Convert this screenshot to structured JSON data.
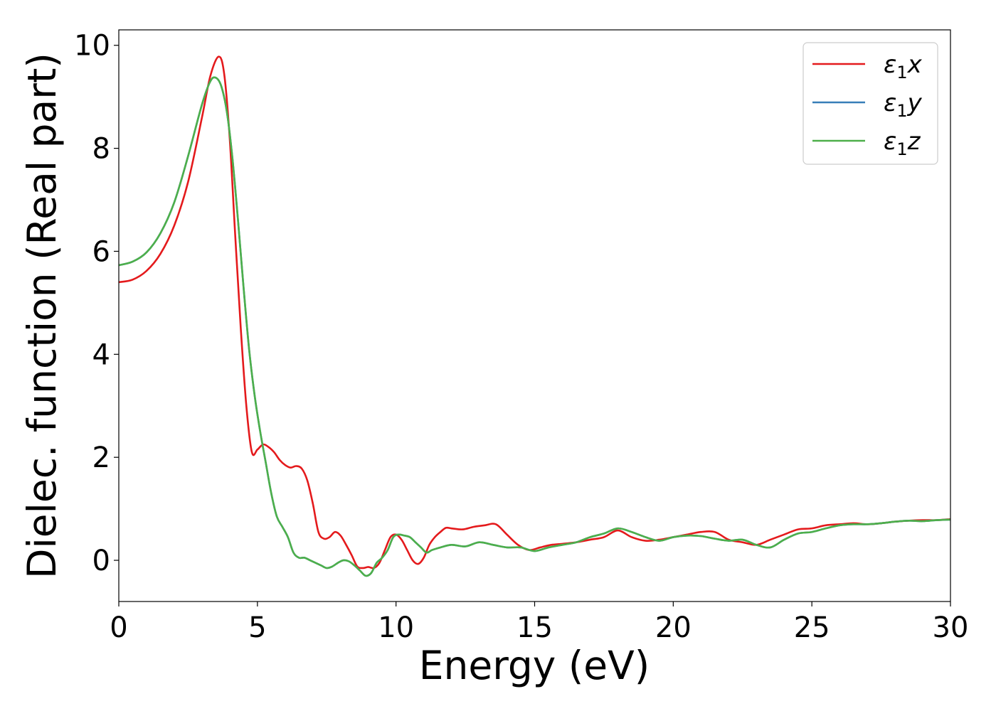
{
  "chart_data": {
    "type": "line",
    "title": "",
    "xlabel": "Energy (eV)",
    "ylabel": "Dielec. function (Real part)",
    "xlim": [
      0,
      30
    ],
    "ylim": [
      -0.8,
      10.3
    ],
    "xticks": [
      0,
      5,
      10,
      15,
      20,
      25,
      30
    ],
    "yticks": [
      0,
      2,
      4,
      6,
      8,
      10
    ],
    "grid": false,
    "legend_position": "top-right",
    "series": [
      {
        "name": "ε1x",
        "name_parts": {
          "symbol": "ε",
          "sub": "1",
          "axis": "x"
        },
        "color": "#e41a1c",
        "x": [
          0,
          0.5,
          1.0,
          1.5,
          2.0,
          2.5,
          3.0,
          3.3,
          3.6,
          3.8,
          4.0,
          4.2,
          4.4,
          4.6,
          4.8,
          5.0,
          5.2,
          5.4,
          5.6,
          5.8,
          6.0,
          6.2,
          6.4,
          6.6,
          6.8,
          7.0,
          7.2,
          7.4,
          7.6,
          7.8,
          8.0,
          8.2,
          8.4,
          8.6,
          8.8,
          9.0,
          9.2,
          9.4,
          9.6,
          9.8,
          10.0,
          10.2,
          10.4,
          10.6,
          10.8,
          11.0,
          11.2,
          11.4,
          11.6,
          11.8,
          12.0,
          12.4,
          12.8,
          13.2,
          13.6,
          14.0,
          14.4,
          14.8,
          15.2,
          15.6,
          16.0,
          16.5,
          17.0,
          17.5,
          18.0,
          18.5,
          19.0,
          19.5,
          20.0,
          20.5,
          21.0,
          21.5,
          22.0,
          22.5,
          23.0,
          23.5,
          24.0,
          24.5,
          25.0,
          25.5,
          26.0,
          26.5,
          27.0,
          27.5,
          28.0,
          28.5,
          29.0,
          29.5,
          30.0
        ],
        "y": [
          5.4,
          5.45,
          5.62,
          5.95,
          6.5,
          7.35,
          8.6,
          9.4,
          9.78,
          9.45,
          8.2,
          6.3,
          4.5,
          3.0,
          2.1,
          2.15,
          2.25,
          2.2,
          2.1,
          1.95,
          1.85,
          1.8,
          1.83,
          1.78,
          1.55,
          1.1,
          0.55,
          0.42,
          0.45,
          0.55,
          0.48,
          0.3,
          0.1,
          -0.12,
          -0.15,
          -0.13,
          -0.15,
          -0.05,
          0.2,
          0.45,
          0.5,
          0.4,
          0.2,
          0.0,
          -0.07,
          0.05,
          0.3,
          0.45,
          0.55,
          0.63,
          0.62,
          0.6,
          0.65,
          0.68,
          0.7,
          0.5,
          0.3,
          0.2,
          0.25,
          0.3,
          0.32,
          0.35,
          0.4,
          0.45,
          0.58,
          0.45,
          0.38,
          0.4,
          0.45,
          0.5,
          0.55,
          0.55,
          0.4,
          0.35,
          0.3,
          0.4,
          0.5,
          0.6,
          0.62,
          0.68,
          0.7,
          0.72,
          0.7,
          0.72,
          0.75,
          0.77,
          0.78,
          0.78,
          0.8
        ]
      },
      {
        "name": "ε1y",
        "name_parts": {
          "symbol": "ε",
          "sub": "1",
          "axis": "y"
        },
        "color": "#377eb8",
        "x": [
          0,
          0.5,
          1.0,
          1.5,
          2.0,
          2.5,
          3.0,
          3.3,
          3.5,
          3.7,
          3.9,
          4.1,
          4.3,
          4.5,
          4.7,
          4.9,
          5.1,
          5.3,
          5.5,
          5.7,
          5.9,
          6.1,
          6.3,
          6.5,
          6.7,
          6.9,
          7.1,
          7.3,
          7.5,
          7.7,
          7.9,
          8.1,
          8.3,
          8.5,
          8.7,
          8.9,
          9.1,
          9.3,
          9.5,
          9.7,
          9.9,
          10.1,
          10.3,
          10.5,
          10.7,
          10.9,
          11.1,
          11.3,
          11.6,
          12.0,
          12.5,
          13.0,
          13.5,
          14.0,
          14.5,
          15.0,
          15.5,
          16.0,
          16.5,
          17.0,
          17.5,
          18.0,
          18.5,
          19.0,
          19.5,
          20.0,
          20.5,
          21.0,
          21.5,
          22.0,
          22.5,
          23.0,
          23.5,
          24.0,
          24.5,
          25.0,
          25.5,
          26.0,
          26.5,
          27.0,
          27.5,
          28.0,
          28.5,
          29.0,
          29.5,
          30.0
        ],
        "y": [
          5.73,
          5.8,
          5.98,
          6.35,
          6.95,
          7.85,
          8.85,
          9.3,
          9.37,
          9.2,
          8.7,
          7.8,
          6.6,
          5.3,
          4.1,
          3.2,
          2.5,
          1.9,
          1.3,
          0.85,
          0.65,
          0.45,
          0.15,
          0.05,
          0.05,
          0.0,
          -0.05,
          -0.1,
          -0.15,
          -0.12,
          -0.05,
          0.0,
          -0.02,
          -0.1,
          -0.2,
          -0.3,
          -0.25,
          -0.05,
          0.05,
          0.2,
          0.45,
          0.5,
          0.48,
          0.45,
          0.35,
          0.25,
          0.15,
          0.2,
          0.25,
          0.3,
          0.27,
          0.35,
          0.3,
          0.25,
          0.25,
          0.18,
          0.25,
          0.3,
          0.35,
          0.45,
          0.52,
          0.62,
          0.55,
          0.45,
          0.38,
          0.45,
          0.48,
          0.47,
          0.42,
          0.38,
          0.4,
          0.3,
          0.25,
          0.4,
          0.52,
          0.55,
          0.62,
          0.68,
          0.7,
          0.7,
          0.72,
          0.75,
          0.77,
          0.76,
          0.78,
          0.79
        ]
      },
      {
        "name": "ε1z",
        "name_parts": {
          "symbol": "ε",
          "sub": "1",
          "axis": "z"
        },
        "color": "#4daf4a",
        "x": [
          0,
          0.5,
          1.0,
          1.5,
          2.0,
          2.5,
          3.0,
          3.3,
          3.5,
          3.7,
          3.9,
          4.1,
          4.3,
          4.5,
          4.7,
          4.9,
          5.1,
          5.3,
          5.5,
          5.7,
          5.9,
          6.1,
          6.3,
          6.5,
          6.7,
          6.9,
          7.1,
          7.3,
          7.5,
          7.7,
          7.9,
          8.1,
          8.3,
          8.5,
          8.7,
          8.9,
          9.1,
          9.3,
          9.5,
          9.7,
          9.9,
          10.1,
          10.3,
          10.5,
          10.7,
          10.9,
          11.1,
          11.3,
          11.6,
          12.0,
          12.5,
          13.0,
          13.5,
          14.0,
          14.5,
          15.0,
          15.5,
          16.0,
          16.5,
          17.0,
          17.5,
          18.0,
          18.5,
          19.0,
          19.5,
          20.0,
          20.5,
          21.0,
          21.5,
          22.0,
          22.5,
          23.0,
          23.5,
          24.0,
          24.5,
          25.0,
          25.5,
          26.0,
          26.5,
          27.0,
          27.5,
          28.0,
          28.5,
          29.0,
          29.5,
          30.0
        ],
        "y": [
          5.73,
          5.8,
          5.98,
          6.35,
          6.95,
          7.85,
          8.85,
          9.3,
          9.37,
          9.2,
          8.7,
          7.8,
          6.6,
          5.3,
          4.1,
          3.2,
          2.5,
          1.9,
          1.3,
          0.85,
          0.65,
          0.45,
          0.15,
          0.05,
          0.05,
          0.0,
          -0.05,
          -0.1,
          -0.15,
          -0.12,
          -0.05,
          0.0,
          -0.02,
          -0.1,
          -0.2,
          -0.3,
          -0.25,
          -0.05,
          0.05,
          0.2,
          0.45,
          0.5,
          0.48,
          0.45,
          0.35,
          0.25,
          0.15,
          0.2,
          0.25,
          0.3,
          0.27,
          0.35,
          0.3,
          0.25,
          0.25,
          0.18,
          0.25,
          0.3,
          0.35,
          0.45,
          0.52,
          0.62,
          0.55,
          0.45,
          0.38,
          0.45,
          0.48,
          0.47,
          0.42,
          0.38,
          0.4,
          0.3,
          0.25,
          0.4,
          0.52,
          0.55,
          0.62,
          0.68,
          0.7,
          0.7,
          0.72,
          0.75,
          0.77,
          0.76,
          0.78,
          0.79
        ]
      }
    ]
  }
}
